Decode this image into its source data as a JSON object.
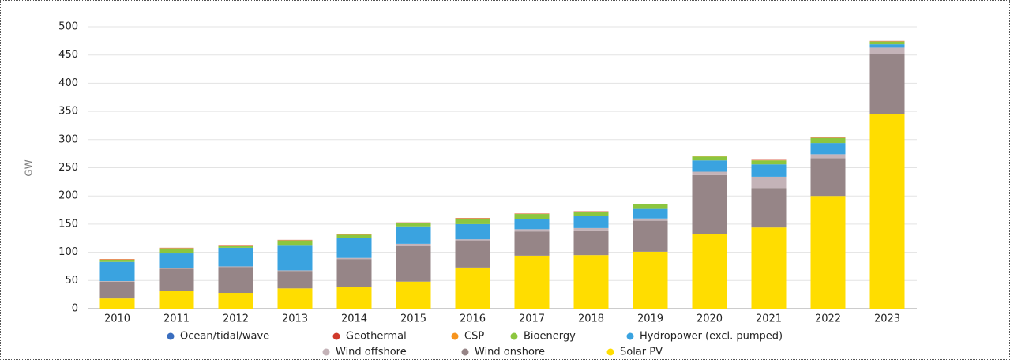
{
  "chart_data": {
    "type": "stacked_bar",
    "y_label": "GW",
    "categories": [
      "2010",
      "2011",
      "2012",
      "2013",
      "2014",
      "2015",
      "2016",
      "2017",
      "2018",
      "2019",
      "2020",
      "2021",
      "2022",
      "2023"
    ],
    "ylim": [
      0,
      500
    ],
    "yticks": [
      0,
      50,
      100,
      150,
      200,
      250,
      300,
      350,
      400,
      450,
      500
    ],
    "grid": true,
    "series": [
      {
        "name": "Ocean/tidal/wave",
        "color": "#3a6ebf",
        "values": [
          0,
          0,
          0,
          0,
          0,
          0,
          0,
          0,
          0,
          0,
          0,
          0,
          0,
          0
        ]
      },
      {
        "name": "Geothermal",
        "color": "#d0392b",
        "values": [
          0.5,
          0.5,
          0.5,
          0.5,
          0.5,
          0.5,
          0.5,
          0.5,
          0.5,
          0.5,
          0.5,
          0.5,
          0.5,
          0.5
        ]
      },
      {
        "name": "CSP",
        "color": "#f7941d",
        "values": [
          0.5,
          0.5,
          0.5,
          0.5,
          0.5,
          0.5,
          0.5,
          0.5,
          0.5,
          0.5,
          0.5,
          0.5,
          0.5,
          0.5
        ]
      },
      {
        "name": "Bioenergy",
        "color": "#8cc63f",
        "values": [
          4,
          9,
          4,
          8,
          6,
          6,
          10,
          9,
          8,
          8,
          7,
          7,
          9,
          5
        ]
      },
      {
        "name": "Hydropower (excl. pumped)",
        "color": "#3aa3e0",
        "values": [
          34,
          26,
          33,
          45,
          35,
          31,
          27,
          18,
          21,
          17,
          20,
          22,
          20,
          6
        ]
      },
      {
        "name": "Wind offshore",
        "color": "#c4b3b8",
        "values": [
          1,
          1,
          1,
          1,
          2,
          3,
          2,
          4,
          4,
          4,
          6,
          20,
          7,
          12
        ]
      },
      {
        "name": "Wind onshore",
        "color": "#968587",
        "values": [
          30,
          39,
          46,
          31,
          49,
          64,
          48,
          43,
          44,
          55,
          104,
          70,
          67,
          106
        ]
      },
      {
        "name": "Solar PV",
        "color": "#ffdd00",
        "values": [
          18,
          32,
          28,
          36,
          39,
          48,
          73,
          94,
          95,
          101,
          133,
          144,
          200,
          345
        ]
      }
    ]
  }
}
